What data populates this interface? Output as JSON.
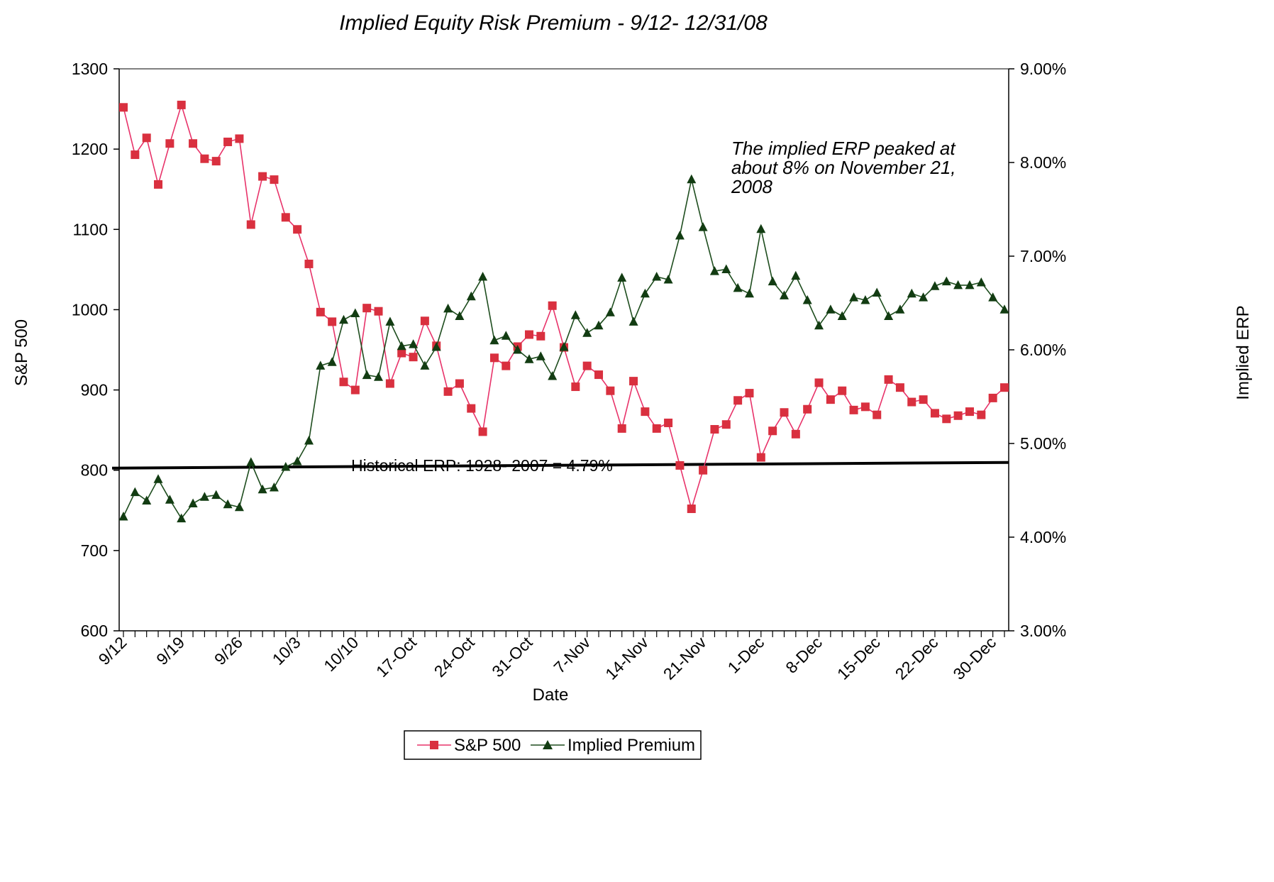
{
  "chart_data": {
    "type": "line",
    "title": "Implied Equity Risk Premium - 9/12- 12/31/08",
    "xlabel": "Date",
    "ylabel_left": "S&P 500",
    "ylabel_right": "Implied ERP",
    "ylim_left": [
      600,
      1300
    ],
    "yticks_left": [
      "600",
      "700",
      "800",
      "900",
      "1000",
      "1100",
      "1200",
      "1300"
    ],
    "ylim_right": [
      0.03,
      0.09
    ],
    "yticks_right": [
      "3.00%",
      "4.00%",
      "5.00%",
      "6.00%",
      "7.00%",
      "8.00%",
      "9.00%"
    ],
    "xtick_labels": [
      {
        "label": "9/12",
        "index": 0
      },
      {
        "label": "9/19",
        "index": 5
      },
      {
        "label": "9/26",
        "index": 10
      },
      {
        "label": "10/3",
        "index": 15
      },
      {
        "label": "10/10",
        "index": 20
      },
      {
        "label": "17-Oct",
        "index": 25
      },
      {
        "label": "24-Oct",
        "index": 30
      },
      {
        "label": "31-Oct",
        "index": 35
      },
      {
        "label": "7-Nov",
        "index": 40
      },
      {
        "label": "14-Nov",
        "index": 45
      },
      {
        "label": "21-Nov",
        "index": 50
      },
      {
        "label": "1-Dec",
        "index": 55
      },
      {
        "label": "8-Dec",
        "index": 60
      },
      {
        "label": "15-Dec",
        "index": 65
      },
      {
        "label": "22-Dec",
        "index": 70
      },
      {
        "label": "30-Dec",
        "index": 75
      }
    ],
    "n_points": 77,
    "series": [
      {
        "name": "S&P 500",
        "axis": "left",
        "color": "#e8336a",
        "marker": "square",
        "marker_color": "#d9303f",
        "values": [
          1252,
          1193,
          1214,
          1156,
          1207,
          1255,
          1207,
          1188,
          1185,
          1209,
          1213,
          1106,
          1166,
          1162,
          1115,
          1100,
          1057,
          997,
          985,
          910,
          900,
          1002,
          998,
          908,
          946,
          941,
          986,
          955,
          898,
          908,
          877,
          848,
          940,
          930,
          954,
          969,
          967,
          1005,
          953,
          904,
          930,
          919,
          899,
          852,
          911,
          873,
          852,
          859,
          806,
          752,
          800,
          851,
          857,
          887,
          896,
          816,
          849,
          872,
          845,
          876,
          909,
          888,
          899,
          875,
          879,
          869,
          913,
          903,
          885,
          888,
          871,
          864,
          868,
          873,
          869,
          890,
          903
        ]
      },
      {
        "name": "Implied Premium",
        "axis": "right",
        "color": "#1e4d1e",
        "marker": "triangle",
        "marker_color": "#123c12",
        "values": [
          0.0422,
          0.0448,
          0.0439,
          0.0462,
          0.044,
          0.042,
          0.0436,
          0.0443,
          0.0445,
          0.0435,
          0.0432,
          0.048,
          0.0451,
          0.0453,
          0.0475,
          0.0481,
          0.0503,
          0.0583,
          0.0587,
          0.0632,
          0.0639,
          0.0573,
          0.0571,
          0.063,
          0.0604,
          0.0606,
          0.0583,
          0.0603,
          0.0644,
          0.0636,
          0.0657,
          0.0678,
          0.061,
          0.0615,
          0.06,
          0.059,
          0.0593,
          0.0572,
          0.0603,
          0.0637,
          0.0618,
          0.0626,
          0.064,
          0.0677,
          0.063,
          0.066,
          0.0678,
          0.0675,
          0.0722,
          0.0782,
          0.0731,
          0.0684,
          0.0686,
          0.0666,
          0.066,
          0.0729,
          0.0673,
          0.0658,
          0.0679,
          0.0653,
          0.0626,
          0.0643,
          0.0636,
          0.0656,
          0.0653,
          0.0661,
          0.0636,
          0.0643,
          0.066,
          0.0656,
          0.0668,
          0.0673,
          0.0669,
          0.0669,
          0.0672,
          0.0656,
          0.0643
        ]
      }
    ],
    "reference_line": {
      "label": "Historical ERP: 1928- 2007 = 4.79%",
      "value": 0.0479,
      "axis": "right",
      "color": "#000000"
    },
    "annotation": {
      "lines": [
        "The implied ERP peaked at",
        "about 8% on November 21,",
        "2008"
      ]
    },
    "legend": {
      "position": "bottom-center",
      "items": [
        "S&P 500",
        "Implied Premium"
      ]
    },
    "grid": false
  }
}
